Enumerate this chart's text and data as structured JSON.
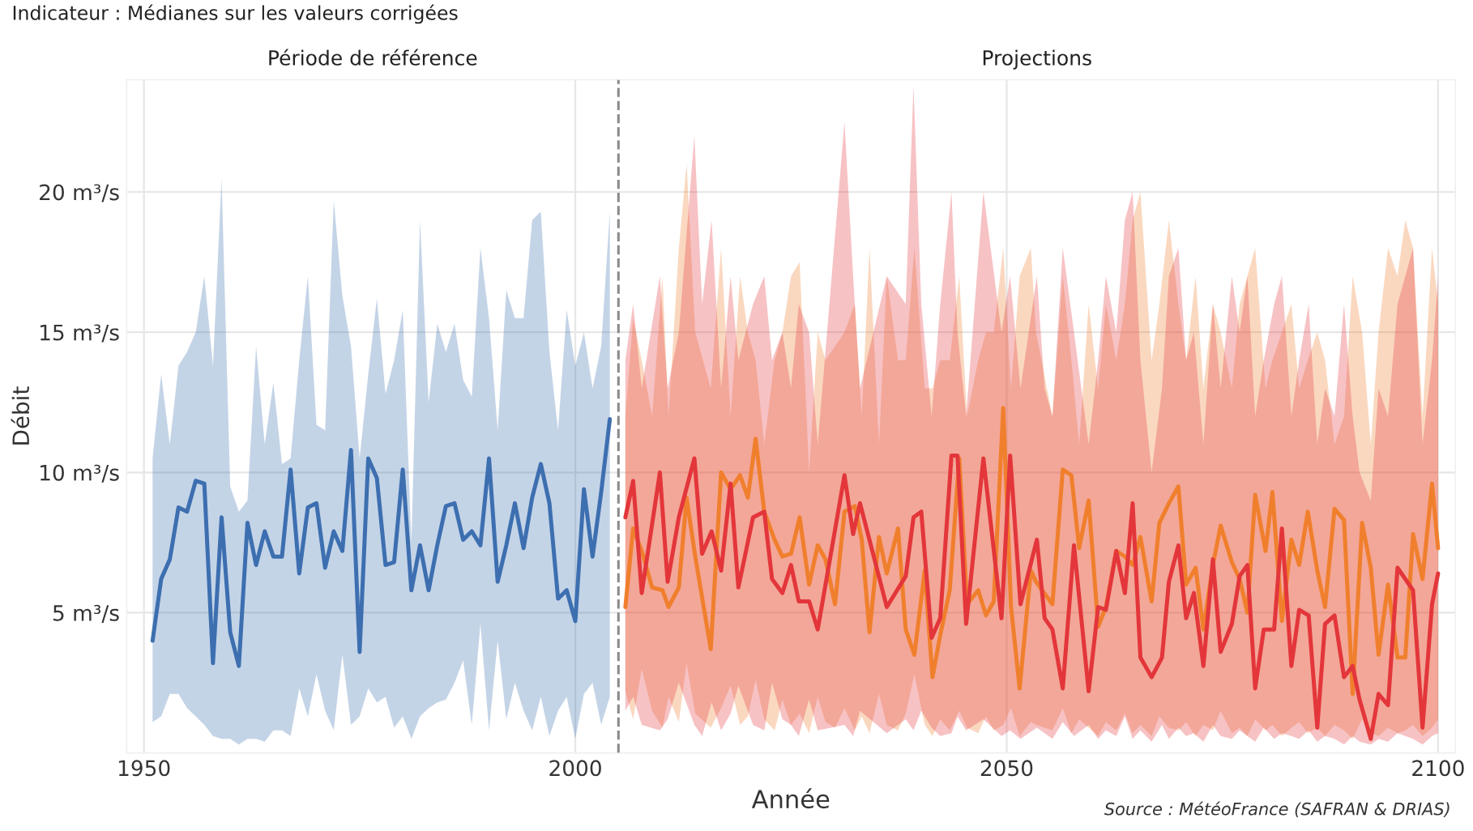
{
  "chart_data": {
    "type": "line",
    "subtitle": "Indicateur : Médianes sur les valeurs corrigées",
    "xlabel": "Année",
    "ylabel": "Débit",
    "annotations": [
      "Période de référence",
      "Projections",
      "Source : MétéoFrance (SAFRAN & DRIAS)"
    ],
    "xlim": [
      1948,
      2102
    ],
    "xticks": [
      1950,
      2000,
      2050,
      2100
    ],
    "ylim": [
      0,
      24
    ],
    "yticks": [
      {
        "value": 5,
        "label": "5 m³/s"
      },
      {
        "value": 10,
        "label": "10 m³/s"
      },
      {
        "value": 15,
        "label": "15 m³/s"
      },
      {
        "value": 20,
        "label": "20 m³/s"
      }
    ],
    "grid": true,
    "line_style": "solid",
    "marker": "none",
    "ref_lines": [
      {
        "axis": "x",
        "value": 2005,
        "color": "#8a8a8a",
        "line_style": "dashed"
      }
    ],
    "series": [
      {
        "color": "#3d6fb0",
        "x": [
          1951,
          1952,
          1953,
          1954,
          1955,
          1956,
          1957,
          1958,
          1959,
          1960,
          1961,
          1962,
          1963,
          1964,
          1965,
          1966,
          1967,
          1968,
          1969,
          1970,
          1971,
          1972,
          1973,
          1974,
          1975,
          1976,
          1977,
          1978,
          1979,
          1980,
          1981,
          1982,
          1983,
          1984,
          1985,
          1986,
          1987,
          1988,
          1989,
          1990,
          1991,
          1992,
          1993,
          1994,
          1995,
          1996,
          1997,
          1998,
          1999,
          2000,
          2001,
          2002,
          2003,
          2004
        ],
        "values": [
          4.0,
          6.2,
          6.9,
          8.75,
          8.6,
          9.7,
          9.6,
          3.2,
          8.4,
          4.3,
          3.1,
          8.2,
          6.7,
          7.9,
          7.0,
          7.0,
          10.1,
          6.4,
          8.75,
          8.9,
          6.6,
          7.9,
          7.2,
          10.8,
          3.6,
          10.5,
          9.8,
          6.7,
          6.8,
          10.1,
          5.8,
          7.4,
          5.8,
          7.4,
          8.8,
          8.9,
          7.6,
          7.9,
          7.4,
          10.5,
          6.1,
          7.4,
          8.9,
          7.3,
          9.1,
          10.3,
          8.9,
          5.5,
          5.8,
          4.7,
          9.4,
          7.0,
          9.3,
          11.9
        ],
        "upper": [
          10.5,
          13.5,
          11,
          13.8,
          14.3,
          15,
          17,
          13.8,
          20.5,
          9.5,
          8.6,
          9,
          14.5,
          11,
          13.2,
          10.3,
          10.5,
          14,
          17,
          11.7,
          11.5,
          19.7,
          16.3,
          14.5,
          10.5,
          13.5,
          16.2,
          12.8,
          14,
          15.8,
          7.5,
          19,
          12.5,
          15.3,
          14.3,
          15.3,
          13.3,
          12.7,
          18,
          15.5,
          11.5,
          16.5,
          15.5,
          15.5,
          19,
          19.3,
          14.3,
          11.5,
          15.8,
          13.8,
          15,
          13,
          14.5,
          19.3
        ],
        "lower": [
          1.1,
          1.3,
          2.1,
          2.1,
          1.6,
          1.3,
          1.0,
          0.6,
          0.5,
          0.5,
          0.3,
          0.5,
          0.5,
          0.4,
          0.8,
          0.8,
          0.6,
          2.3,
          1.3,
          2.8,
          1.5,
          0.8,
          3.5,
          1.0,
          1.3,
          2.3,
          1.8,
          2.0,
          0.9,
          1.3,
          0.5,
          1.3,
          1.6,
          1.8,
          1.9,
          2.5,
          3.3,
          1.0,
          4.6,
          0.8,
          4.0,
          1.2,
          2.5,
          1.5,
          0.8,
          2.0,
          0.6,
          1.5,
          2.0,
          0.5,
          2.1,
          2.5,
          1.0,
          2.0
        ]
      },
      {
        "color": "#f07f2d",
        "x": [
          2005.8,
          2006.7,
          2007.7,
          2008.9,
          2010.1,
          2010.8,
          2012,
          2012.9,
          2013.9,
          2015.7,
          2016.9,
          2018,
          2019.1,
          2020,
          2020.9,
          2021.9,
          2023.1,
          2024,
          2025,
          2026,
          2027.1,
          2028.1,
          2029,
          2030.1,
          2031.2,
          2032.4,
          2033.2,
          2034.1,
          2035.2,
          2036.1,
          2037.4,
          2038.3,
          2039.3,
          2040.5,
          2041.4,
          2042.3,
          2043.4,
          2044.5,
          2045.4,
          2046.7,
          2047.6,
          2048.5,
          2049.6,
          2050.5,
          2051.5,
          2052.8,
          2053.4,
          2055.3,
          2056.5,
          2057.5,
          2058.4,
          2059.5,
          2060.6,
          2061.5,
          2062.7,
          2063.7,
          2064.6,
          2065.5,
          2066.8,
          2067.7,
          2068.8,
          2069.9,
          2070.8,
          2071.9,
          2072.8,
          2073.9,
          2074.8,
          2076.1,
          2077,
          2077.9,
          2078.8,
          2080,
          2080.8,
          2081.9,
          2083,
          2083.9,
          2084.9,
          2086,
          2086.9,
          2088,
          2089.1,
          2090.1,
          2091.2,
          2092.2,
          2093.1,
          2094.2,
          2095.3,
          2096.2,
          2097.1,
          2098.2,
          2099.3,
          2100
        ],
        "values": [
          5.2,
          8.0,
          7.2,
          5.9,
          5.8,
          5.2,
          5.9,
          9.1,
          7.0,
          3.7,
          10.0,
          9.4,
          9.9,
          9.1,
          11.2,
          8.6,
          7.6,
          7.0,
          7.1,
          8.4,
          6.0,
          7.4,
          6.9,
          5.3,
          8.6,
          8.8,
          7.6,
          4.3,
          7.7,
          6.4,
          8.0,
          4.4,
          3.5,
          6.5,
          2.7,
          4.2,
          5.8,
          10.5,
          5.3,
          5.8,
          4.9,
          5.4,
          12.3,
          5.2,
          2.3,
          6.5,
          6.1,
          5.3,
          10.1,
          9.9,
          7.3,
          9.0,
          4.5,
          5.2,
          7.2,
          7.0,
          6.7,
          7.7,
          5.4,
          8.2,
          8.9,
          9.5,
          6.0,
          6.6,
          4.4,
          6.7,
          8.1,
          6.8,
          6.2,
          5.0,
          9.2,
          7.2,
          9.3,
          4.7,
          7.6,
          6.7,
          8.6,
          6.5,
          5.2,
          8.7,
          8.3,
          2.1,
          8.2,
          6.6,
          3.5,
          6.0,
          3.4,
          3.4,
          7.8,
          6.2,
          9.6,
          7.3
        ],
        "upper": [
          12,
          15.5,
          14,
          12,
          17,
          12,
          18,
          21,
          15,
          13,
          18,
          12,
          17,
          15,
          14,
          11,
          14,
          15,
          17,
          17.5,
          10,
          15,
          14,
          14.5,
          15,
          16,
          12,
          18,
          11,
          17,
          14,
          14,
          18,
          13,
          13,
          14,
          14,
          17,
          12,
          14,
          15,
          15,
          18,
          13,
          17,
          18,
          15,
          12,
          17,
          14,
          11,
          16,
          13,
          16,
          14,
          16,
          19,
          20,
          14,
          16,
          19,
          16,
          14,
          17,
          13,
          16,
          15,
          13,
          16,
          17,
          18,
          13,
          14,
          15,
          16,
          13,
          14,
          15,
          14,
          11,
          12,
          17,
          15,
          11,
          15,
          18,
          17,
          19,
          18,
          12,
          18,
          16
        ],
        "lower": [
          2.2,
          1.2,
          3.0,
          1.5,
          0.9,
          2.0,
          1.1,
          3.2,
          1.4,
          0.9,
          1.6,
          2.4,
          1.0,
          1.3,
          2.6,
          1.2,
          0.8,
          1.9,
          1.0,
          1.4,
          0.7,
          2.0,
          1.1,
          0.9,
          1.6,
          0.8,
          1.3,
          0.7,
          2.1,
          1.0,
          0.8,
          1.4,
          2.8,
          1.0,
          0.6,
          1.2,
          0.8,
          1.5,
          0.9,
          0.7,
          1.3,
          0.8,
          1.0,
          1.6,
          0.6,
          1.1,
          1.0,
          0.8,
          1.6,
          0.7,
          1.2,
          0.9,
          0.6,
          1.1,
          0.8,
          1.4,
          0.7,
          1.0,
          0.6,
          1.3,
          0.9,
          0.8,
          1.1,
          0.6,
          1.0,
          0.8,
          1.5,
          0.7,
          0.9,
          0.6,
          1.2,
          0.8,
          1.0,
          0.6,
          0.9,
          1.1,
          0.7,
          0.9,
          0.6,
          1.0,
          0.8,
          0.5,
          1.2,
          0.7,
          0.6,
          0.9,
          0.7,
          0.8,
          1.0,
          0.6,
          0.9,
          1.2
        ]
      },
      {
        "color": "#e3363b",
        "x": [
          2005.8,
          2006.7,
          2007.7,
          2009.8,
          2010.7,
          2012,
          2013.8,
          2014.7,
          2015.8,
          2016.9,
          2018,
          2018.9,
          2020.6,
          2021.9,
          2022.8,
          2024,
          2025,
          2025.9,
          2027.1,
          2028.1,
          2031.2,
          2032.2,
          2033,
          2036.1,
          2038.3,
          2039.2,
          2040.1,
          2041.3,
          2042.3,
          2043.6,
          2044.3,
          2045.3,
          2047.3,
          2049.4,
          2050.4,
          2051.6,
          2053.5,
          2054.4,
          2055.3,
          2056.5,
          2057.8,
          2059.5,
          2060.6,
          2061.5,
          2062.7,
          2063.7,
          2064.6,
          2065.5,
          2066.8,
          2068,
          2068.8,
          2069.9,
          2070.8,
          2071.7,
          2072.8,
          2073.9,
          2074.8,
          2076.1,
          2077,
          2077.9,
          2078.8,
          2079.8,
          2081,
          2081.9,
          2083,
          2083.9,
          2085,
          2086,
          2086.9,
          2088,
          2089.1,
          2090.1,
          2090.9,
          2092.2,
          2093.1,
          2094.2,
          2095.3,
          2097.1,
          2098.2,
          2099.3,
          2100
        ],
        "values": [
          8.4,
          9.7,
          5.7,
          10.0,
          6.1,
          8.4,
          10.5,
          7.1,
          7.9,
          6.5,
          9.6,
          5.9,
          8.4,
          8.6,
          6.2,
          5.7,
          6.7,
          5.4,
          5.4,
          4.4,
          9.9,
          7.8,
          8.9,
          5.2,
          6.3,
          8.4,
          8.6,
          4.1,
          4.8,
          10.6,
          10.6,
          4.6,
          10.5,
          4.8,
          10.6,
          5.3,
          7.6,
          4.8,
          4.4,
          2.3,
          7.4,
          2.2,
          5.2,
          5.1,
          7.2,
          5.7,
          8.9,
          3.4,
          2.7,
          3.4,
          6.1,
          7.4,
          4.8,
          5.7,
          3.1,
          6.9,
          3.6,
          4.6,
          6.3,
          6.7,
          2.3,
          4.4,
          4.4,
          8.0,
          3.1,
          5.1,
          4.9,
          0.9,
          4.6,
          4.9,
          2.7,
          3.1,
          1.9,
          0.5,
          2.1,
          1.7,
          6.6,
          5.8,
          0.9,
          5.3,
          6.4
        ],
        "upper": [
          14,
          16,
          13,
          17,
          13,
          15,
          22,
          16,
          19,
          13,
          17,
          14,
          16,
          17,
          14,
          15,
          13,
          16,
          15,
          11,
          22.5,
          17,
          13,
          17,
          16,
          23.8,
          16,
          12,
          16,
          20,
          15,
          12,
          20,
          15,
          17,
          13,
          17,
          13,
          12,
          18,
          15,
          11,
          14,
          17,
          15,
          19,
          20,
          14,
          10,
          13,
          17,
          18,
          14,
          15,
          11,
          16,
          13,
          17,
          15,
          17,
          12,
          14,
          16,
          17,
          12,
          14,
          16,
          11,
          13,
          12,
          16,
          12,
          10,
          9,
          13,
          12,
          16,
          18,
          11,
          14,
          17
        ],
        "lower": [
          1.5,
          2.0,
          1.0,
          0.8,
          1.2,
          2.5,
          1.0,
          0.6,
          1.8,
          0.8,
          1.4,
          2.4,
          1.0,
          0.8,
          2.5,
          1.2,
          1.0,
          0.6,
          1.9,
          0.8,
          1.0,
          0.6,
          1.5,
          0.7,
          1.2,
          0.8,
          1.5,
          0.9,
          0.6,
          0.7,
          1.3,
          0.8,
          1.2,
          0.6,
          0.8,
          0.5,
          0.9,
          0.7,
          0.5,
          1.1,
          0.6,
          1.0,
          0.5,
          0.8,
          0.6,
          1.3,
          0.5,
          0.8,
          0.4,
          1.0,
          0.5,
          0.9,
          0.6,
          0.7,
          0.4,
          1.0,
          0.6,
          0.5,
          0.8,
          0.6,
          0.4,
          0.9,
          0.5,
          0.7,
          0.6,
          0.5,
          0.8,
          0.4,
          0.6,
          0.5,
          0.3,
          0.6,
          0.4,
          0.3,
          0.5,
          0.4,
          0.7,
          0.5,
          0.3,
          0.6,
          0.7
        ]
      }
    ]
  }
}
